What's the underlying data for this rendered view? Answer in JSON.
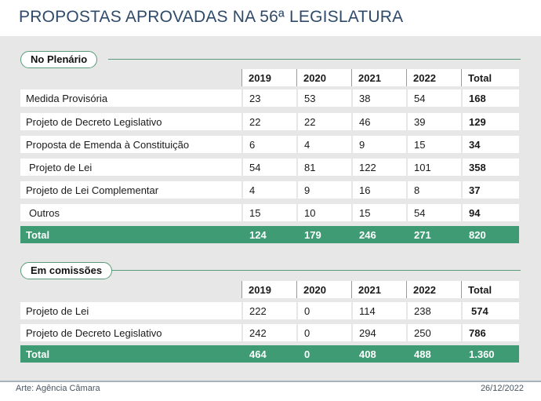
{
  "title": "PROPOSTAS APROVADAS NA 56ª LEGISLATURA",
  "plenario": {
    "label": "No Plenário",
    "headers": [
      "2019",
      "2020",
      "2021",
      "2022",
      "Total"
    ],
    "rows": [
      {
        "label": "Medida Provisória",
        "values": [
          "23",
          "53",
          "38",
          "54"
        ],
        "total": "168"
      },
      {
        "label": "Projeto de Decreto Legislativo",
        "values": [
          "22",
          "22",
          "46",
          "39"
        ],
        "total": "129"
      },
      {
        "label": "Proposta de Emenda à Constituição",
        "values": [
          "6",
          "4",
          "9",
          "15"
        ],
        "total": "34"
      },
      {
        "label": "Projeto de Lei",
        "values": [
          "54",
          "81",
          "122",
          "101"
        ],
        "total": "358"
      },
      {
        "label": "Projeto de Lei Complementar",
        "values": [
          "4",
          "9",
          "16",
          "8"
        ],
        "total": "37"
      },
      {
        "label": "Outros",
        "values": [
          "15",
          "10",
          "15",
          "54"
        ],
        "total": "94"
      }
    ],
    "total_row": {
      "label": "Total",
      "values": [
        "124",
        "179",
        "246",
        "271"
      ],
      "total": "820"
    }
  },
  "comissoes": {
    "label": "Em comissões",
    "headers": [
      "2019",
      "2020",
      "2021",
      "2022",
      "Total"
    ],
    "rows": [
      {
        "label": "Projeto de Lei",
        "values": [
          "222",
          "0",
          "114",
          "238"
        ],
        "total": "574"
      },
      {
        "label": "Projeto de Decreto Legislativo",
        "values": [
          "242",
          "0",
          "294",
          "250"
        ],
        "total": "786"
      }
    ],
    "total_row": {
      "label": "Total",
      "values": [
        "464",
        "0",
        "408",
        "488"
      ],
      "total": "1.360"
    }
  },
  "footer": {
    "credit": "Arte: Agência Câmara",
    "date": "26/12/2022"
  }
}
